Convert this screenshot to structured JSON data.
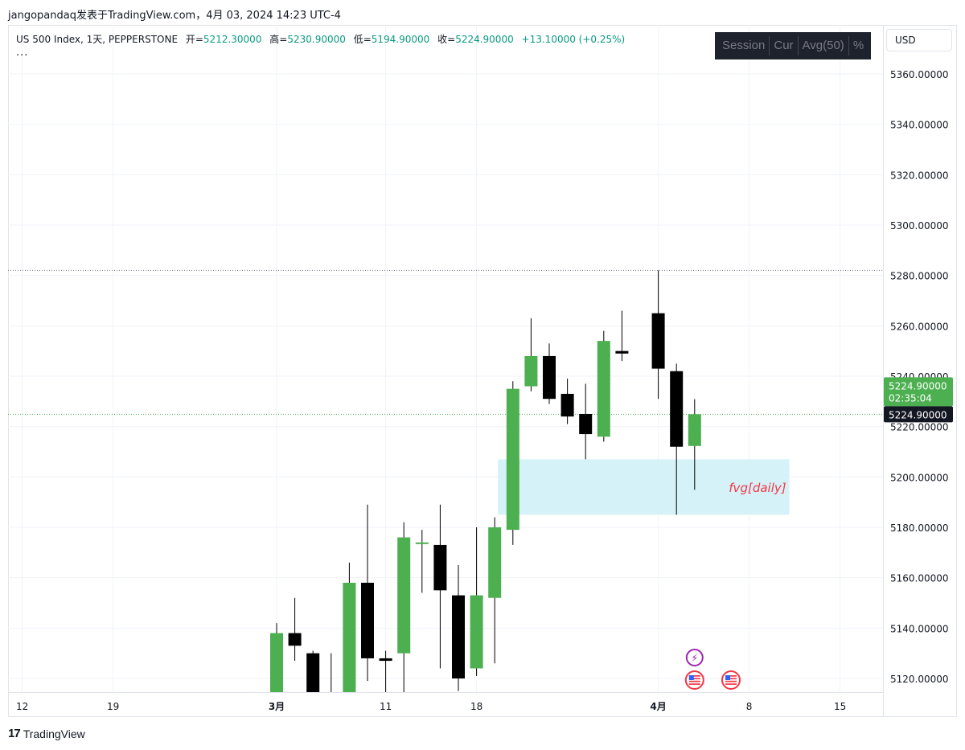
{
  "caption": "jangopandaq发表于TradingView.com，4月 03, 2024 14:23 UTC-4",
  "legend": {
    "symbol": "US 500 Index, 1天, PEPPERSTONE",
    "open_key": "开=",
    "open_val": "5212.30000",
    "high_key": "高=",
    "high_val": "5230.90000",
    "low_key": "低=",
    "low_val": "5194.90000",
    "close_key": "收=",
    "close_val": "5224.90000",
    "change": "+13.10000 (+0.25%)",
    "more": "..."
  },
  "toolbar": {
    "session": "Session",
    "cur": "Cur",
    "avg": "Avg(50)",
    "pct": "%"
  },
  "currency": "USD",
  "footer": {
    "brand_mark": "17",
    "brand": "TradingView"
  },
  "colors": {
    "up": "#4caf50",
    "down": "#000000",
    "fvg_fill": "#d4f2f7",
    "fvg_text": "#f23645",
    "last_price": "#4caf50",
    "crosshair_label": "#131722",
    "event_purple": "#9c27b0",
    "event_red": "#f23645"
  },
  "chart_data": {
    "type": "candlestick",
    "y_ticks": [
      5120,
      5140,
      5160,
      5180,
      5200,
      5220,
      5240,
      5260,
      5280,
      5300,
      5320,
      5340,
      5360
    ],
    "y_tick_labels": [
      "5120.00000",
      "5140.00000",
      "5160.00000",
      "5180.00000",
      "5200.00000",
      "5220.00000",
      "5240.00000",
      "5260.00000",
      "5280.00000",
      "5300.00000",
      "5320.00000",
      "5340.00000",
      "5360.00000"
    ],
    "x_ticks": [
      {
        "label": "12",
        "date": "2024-02-12",
        "bold": false
      },
      {
        "label": "19",
        "date": "2024-02-19",
        "bold": false
      },
      {
        "label": "3月",
        "date": "2024-03-01",
        "bold": true
      },
      {
        "label": "11",
        "date": "2024-03-11",
        "bold": false
      },
      {
        "label": "18",
        "date": "2024-03-18",
        "bold": false
      },
      {
        "label": "4月",
        "date": "2024-04-01",
        "bold": true
      },
      {
        "label": "8",
        "date": "2024-04-08",
        "bold": false
      },
      {
        "label": "15",
        "date": "2024-04-15",
        "bold": false
      }
    ],
    "candles": [
      {
        "date": "2024-03-01",
        "open": 5098,
        "high": 5142,
        "low": 5095,
        "close": 5138
      },
      {
        "date": "2024-03-04",
        "open": 5138,
        "high": 5152,
        "low": 5127,
        "close": 5133
      },
      {
        "date": "2024-03-05",
        "open": 5130,
        "high": 5131,
        "low": 5078,
        "close": 5080
      },
      {
        "date": "2024-03-06",
        "open": 5086,
        "high": 5130,
        "low": 5082,
        "close": 5086
      },
      {
        "date": "2024-03-07",
        "open": 5113,
        "high": 5166,
        "low": 5107,
        "close": 5158
      },
      {
        "date": "2024-03-08",
        "open": 5158,
        "high": 5189,
        "low": 5119,
        "close": 5128
      },
      {
        "date": "2024-03-11",
        "open": 5128,
        "high": 5131,
        "low": 5108,
        "close": 5127
      },
      {
        "date": "2024-03-12",
        "open": 5130,
        "high": 5182,
        "low": 5111,
        "close": 5176
      },
      {
        "date": "2024-03-13",
        "open": 5174,
        "high": 5179,
        "low": 5154,
        "close": 5174
      },
      {
        "date": "2024-03-14",
        "open": 5173,
        "high": 5189,
        "low": 5124,
        "close": 5155
      },
      {
        "date": "2024-03-15",
        "open": 5153,
        "high": 5165,
        "low": 5115,
        "close": 5120
      },
      {
        "date": "2024-03-18",
        "open": 5124,
        "high": 5180,
        "low": 5121,
        "close": 5153
      },
      {
        "date": "2024-03-19",
        "open": 5152,
        "high": 5184,
        "low": 5126,
        "close": 5180
      },
      {
        "date": "2024-03-20",
        "open": 5179,
        "high": 5238,
        "low": 5173,
        "close": 5235
      },
      {
        "date": "2024-03-21",
        "open": 5236,
        "high": 5263,
        "low": 5234,
        "close": 5248
      },
      {
        "date": "2024-03-22",
        "open": 5248,
        "high": 5253,
        "low": 5229,
        "close": 5231
      },
      {
        "date": "2024-03-25",
        "open": 5233,
        "high": 5239,
        "low": 5221,
        "close": 5224
      },
      {
        "date": "2024-03-26",
        "open": 5225,
        "high": 5237,
        "low": 5207,
        "close": 5217
      },
      {
        "date": "2024-03-27",
        "open": 5216,
        "high": 5258,
        "low": 5214,
        "close": 5254
      },
      {
        "date": "2024-03-28",
        "open": 5250,
        "high": 5266,
        "low": 5246,
        "close": 5249
      },
      {
        "date": "2024-04-01",
        "open": 5265,
        "high": 5282,
        "low": 5231,
        "close": 5243
      },
      {
        "date": "2024-04-02",
        "open": 5242,
        "high": 5245,
        "low": 5185,
        "close": 5212
      },
      {
        "date": "2024-04-03",
        "open": 5212.3,
        "high": 5230.9,
        "low": 5194.9,
        "close": 5224.9
      }
    ],
    "fvg_zone": {
      "label": "fvg[daily]",
      "top": 5207,
      "bottom": 5185,
      "date_start": "2024-03-19",
      "date_end": "2024-04-08"
    },
    "dotted_high_line": 5282,
    "last_price": {
      "value": 5224.9,
      "label": "5224.90000",
      "countdown": "02:35:04"
    },
    "crosshair": {
      "value": 5224.9,
      "label": "5224.90000"
    },
    "events": [
      {
        "kind": "lightning",
        "date": "2024-04-03"
      },
      {
        "kind": "us-flag",
        "date": "2024-04-03"
      },
      {
        "kind": "us-flag",
        "date": "2024-04-05"
      }
    ]
  }
}
